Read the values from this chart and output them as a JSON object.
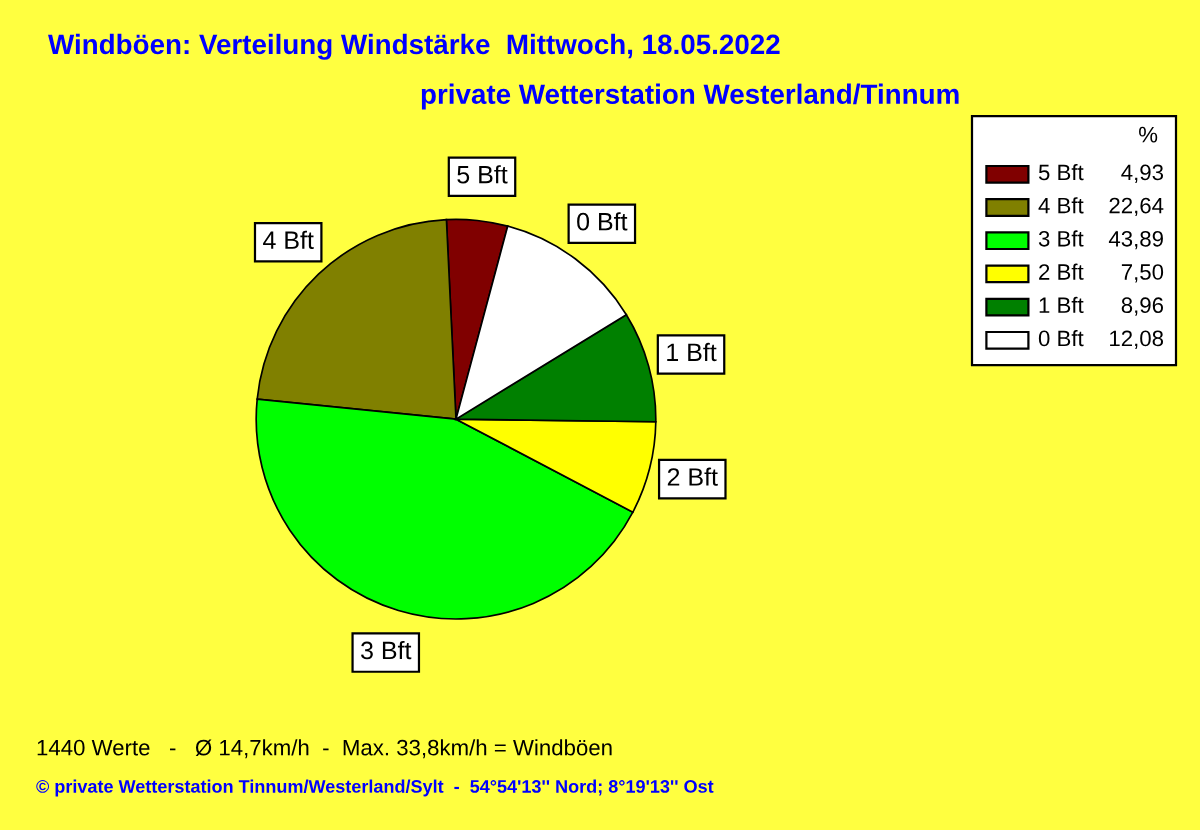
{
  "chart_data": {
    "type": "pie",
    "title": "Windböen: Verteilung Windstärke  Mittwoch, 18.05.2022",
    "subtitle": "private Wetterstation Westerland/Tinnum",
    "categories": [
      "5 Bft",
      "4 Bft",
      "3 Bft",
      "2 Bft",
      "1 Bft",
      "0 Bft"
    ],
    "values": [
      4.93,
      22.64,
      43.89,
      7.5,
      8.96,
      12.08
    ],
    "value_labels": [
      "4,93",
      "22,64",
      "43,89",
      "7,50",
      "8,96",
      "12,08"
    ],
    "colors": [
      "#800000",
      "#808000",
      "#00ff00",
      "#ffff00",
      "#008000",
      "#ffffff"
    ],
    "legend": "top right",
    "legend_title": "%",
    "annotations": [
      "1440 Werte   -   Ø 14,7km/h  -  Max. 33,8km/h = Windböen",
      "© private Wetterstation Tinnum/Westerland/Sylt  -  54°54'13'' Nord; 8°19'13'' Ost"
    ]
  }
}
